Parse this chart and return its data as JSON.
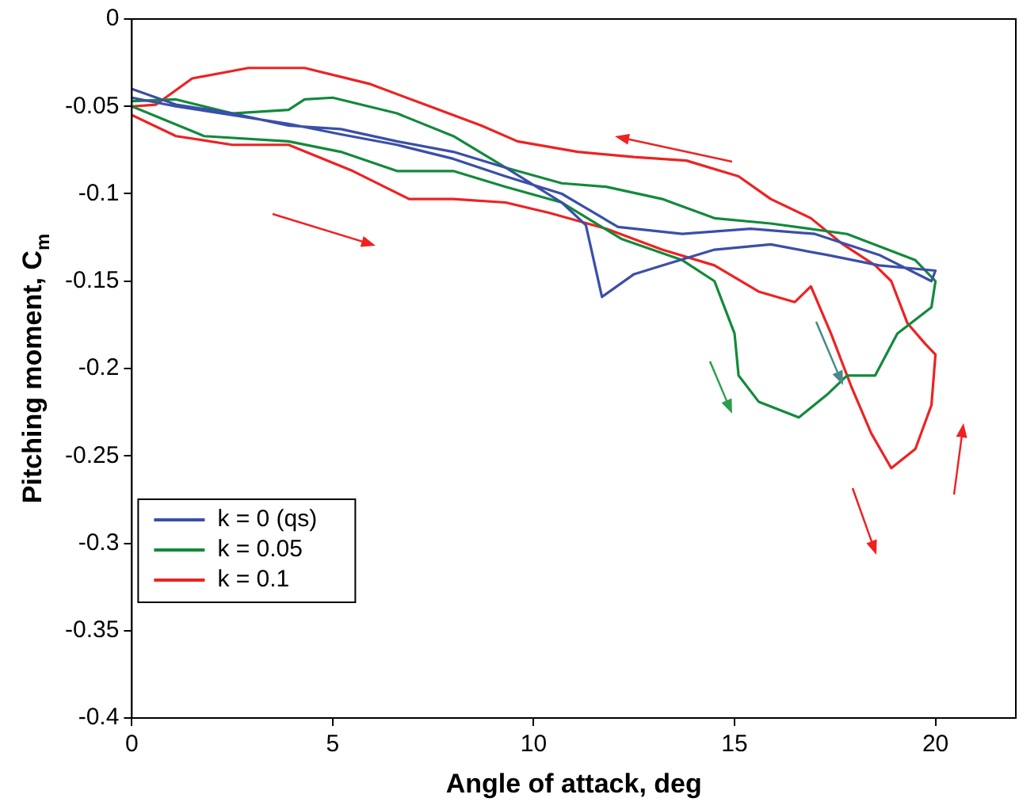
{
  "chart_data": {
    "type": "line",
    "xlabel": "Angle of attack, deg",
    "ylabel": "Pitching moment, C$_{m}$",
    "xlim": [
      0,
      22
    ],
    "xticks": [
      0,
      5,
      10,
      15,
      20
    ],
    "ylim": [
      -0.4,
      0
    ],
    "yticks": [
      -0.4,
      -0.35,
      -0.3,
      -0.25,
      -0.2,
      -0.15,
      -0.1,
      -0.05,
      0
    ],
    "grid": false,
    "legend": "bottom left",
    "marker": "none",
    "line_style": "solid",
    "series": [
      {
        "name": "k = 0 (qs)",
        "color": "#3a4fa8",
        "x": [
          0,
          1.1,
          2.5,
          3.9,
          5.2,
          6.6,
          8,
          9.3,
          10.7,
          11.3,
          11.7,
          12.5,
          13.2,
          14.5,
          15.9,
          17.3,
          18.6,
          20,
          19.9,
          18.6,
          17,
          15.4,
          13.7,
          12.1,
          10.7,
          9.3,
          8,
          6.6,
          5.2,
          3.9,
          2.5,
          1.1,
          0
        ],
        "values": [
          -0.04,
          -0.049,
          -0.054,
          -0.061,
          -0.063,
          -0.07,
          -0.076,
          -0.085,
          -0.105,
          -0.118,
          -0.159,
          -0.146,
          -0.141,
          -0.132,
          -0.129,
          -0.135,
          -0.141,
          -0.144,
          -0.15,
          -0.135,
          -0.123,
          -0.12,
          -0.123,
          -0.119,
          -0.1,
          -0.09,
          -0.08,
          -0.072,
          -0.066,
          -0.06,
          -0.055,
          -0.05,
          -0.045
        ]
      },
      {
        "name": "k = 0.05",
        "color": "#128a3a",
        "x": [
          0,
          1.8,
          3.9,
          5.2,
          6.6,
          8,
          9.3,
          10.7,
          12.2,
          13.7,
          14.5,
          15,
          15.1,
          15.6,
          16.6,
          17.3,
          17.8,
          18.5,
          19.05,
          19.9,
          20,
          19.5,
          17.8,
          15.9,
          14.5,
          13.2,
          11.8,
          10.7,
          9.3,
          8,
          6.6,
          5,
          4.3,
          3.9,
          2.5,
          1.1,
          0
        ],
        "values": [
          -0.05,
          -0.067,
          -0.07,
          -0.076,
          -0.087,
          -0.087,
          -0.096,
          -0.105,
          -0.126,
          -0.138,
          -0.15,
          -0.18,
          -0.204,
          -0.219,
          -0.228,
          -0.215,
          -0.204,
          -0.204,
          -0.18,
          -0.165,
          -0.15,
          -0.138,
          -0.123,
          -0.117,
          -0.114,
          -0.103,
          -0.096,
          -0.094,
          -0.085,
          -0.067,
          -0.054,
          -0.045,
          -0.046,
          -0.052,
          -0.054,
          -0.046,
          -0.047
        ]
      },
      {
        "name": "k = 0.1",
        "color": "#ee2222",
        "x": [
          0,
          1.1,
          2.5,
          3.9,
          5.5,
          6.9,
          8,
          9.3,
          10.4,
          11.8,
          13.2,
          14.5,
          15.6,
          16.5,
          16.9,
          17.4,
          17.9,
          18.4,
          18.9,
          19.5,
          19.9,
          20,
          19.75,
          19.3,
          18.9,
          18.5,
          17.7,
          16.9,
          15.9,
          15.1,
          13.8,
          12.5,
          11.1,
          9.6,
          8.7,
          7.3,
          5.9,
          4.3,
          2.9,
          1.5,
          0.6,
          0
        ],
        "values": [
          -0.055,
          -0.067,
          -0.072,
          -0.072,
          -0.087,
          -0.103,
          -0.103,
          -0.105,
          -0.111,
          -0.12,
          -0.132,
          -0.141,
          -0.156,
          -0.162,
          -0.153,
          -0.18,
          -0.21,
          -0.237,
          -0.257,
          -0.246,
          -0.221,
          -0.192,
          -0.186,
          -0.174,
          -0.15,
          -0.141,
          -0.129,
          -0.114,
          -0.103,
          -0.09,
          -0.081,
          -0.079,
          -0.076,
          -0.07,
          -0.061,
          -0.049,
          -0.037,
          -0.028,
          -0.028,
          -0.034,
          -0.049,
          -0.05
        ]
      }
    ]
  }
}
